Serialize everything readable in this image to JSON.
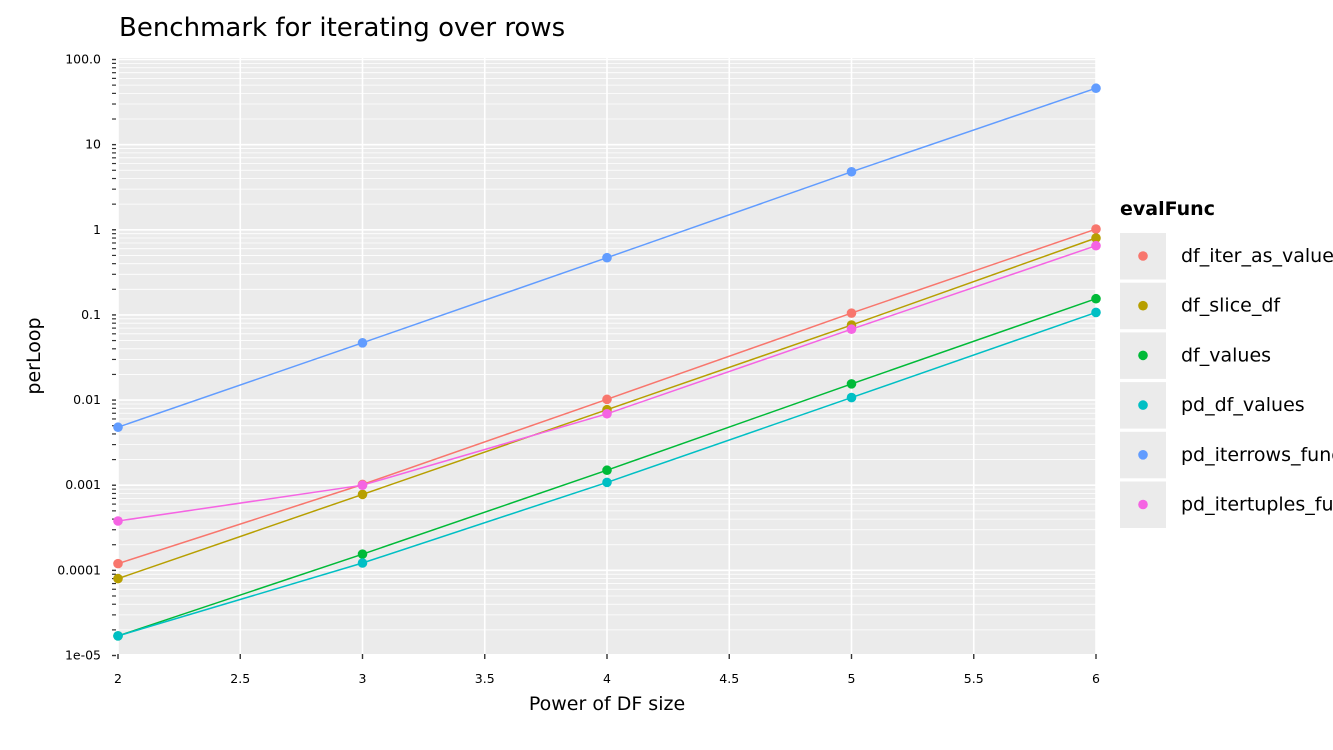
{
  "chart_data": {
    "type": "line",
    "title": "Benchmark for iterating over rows",
    "xlabel": "Power of DF size",
    "ylabel": "perLoop",
    "xlim": [
      2,
      6
    ],
    "ylim": [
      1e-05,
      100
    ],
    "yscale": "log",
    "grid": true,
    "legend_position": "right",
    "x": [
      2,
      3,
      4,
      5,
      6
    ],
    "x_ticks": [
      "2",
      "2.5",
      "3",
      "3.5",
      "4",
      "4.5",
      "5",
      "5.5",
      "6"
    ],
    "x_tick_values": [
      2,
      2.5,
      3,
      3.5,
      4,
      4.5,
      5,
      5.5,
      6
    ],
    "y_ticks": [
      "1e-05",
      "0.0001",
      "0.001",
      "0.01",
      "0.1",
      "1",
      "10",
      "100.0"
    ],
    "y_tick_values": [
      1e-05,
      0.0001,
      0.001,
      0.01,
      0.1,
      1,
      10,
      100
    ],
    "legend_title": "evalFunc",
    "series": [
      {
        "name": "df_iter_as_values",
        "color": "#F8766D",
        "values": [
          0.00012,
          0.00102,
          0.0102,
          0.105,
          1.02
        ]
      },
      {
        "name": "df_slice_df",
        "color": "#B79F00",
        "values": [
          8e-05,
          0.00078,
          0.0077,
          0.076,
          0.8
        ]
      },
      {
        "name": "df_values",
        "color": "#00BA38",
        "values": [
          1.7e-05,
          0.000155,
          0.0015,
          0.0155,
          0.155
        ]
      },
      {
        "name": "pd_df_values",
        "color": "#00BFC4",
        "values": [
          1.7e-05,
          0.000122,
          0.00108,
          0.0107,
          0.107
        ]
      },
      {
        "name": "pd_iterrows_func",
        "color": "#619CFF",
        "values": [
          0.0048,
          0.047,
          0.47,
          4.8,
          46
        ]
      },
      {
        "name": "pd_itertuples_func",
        "color": "#F564E3",
        "values": [
          0.00038,
          0.001,
          0.0069,
          0.068,
          0.65
        ]
      }
    ]
  }
}
